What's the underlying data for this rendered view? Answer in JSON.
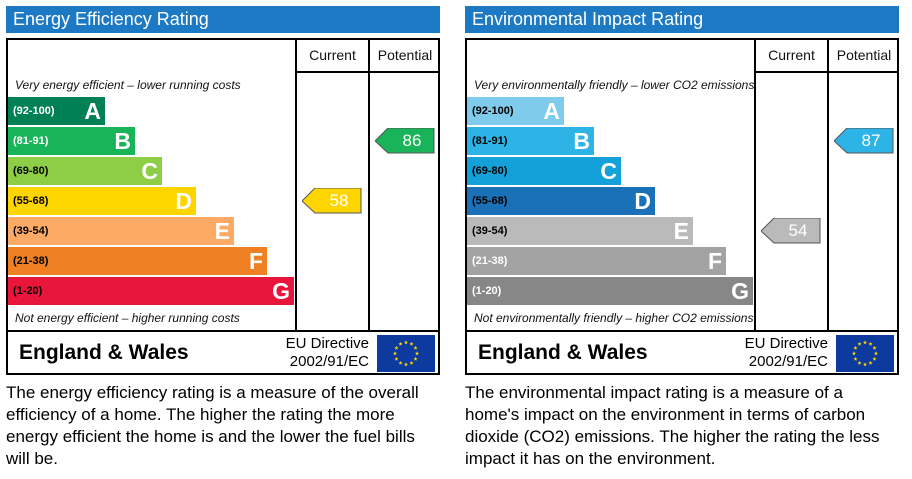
{
  "panels": {
    "energy": {
      "title": "Energy Efficiency Rating",
      "col_current": "Current",
      "col_potential": "Potential",
      "note_top": "Very energy efficient – lower running costs",
      "note_bottom": "Not energy efficient – higher running costs",
      "region": "England & Wales",
      "directive_line1": "EU Directive",
      "directive_line2": "2002/91/EC",
      "description": "The energy efficiency rating is a measure of the overall efficiency of a home.  The higher the rating the more energy efficient the home is and the lower the fuel bills will be."
    },
    "environment": {
      "title": "Environmental Impact Rating",
      "col_current": "Current",
      "col_potential": "Potential",
      "note_top": "Very environmentally friendly – lower CO2 emissions",
      "note_bottom": "Not environmentally friendly – higher CO2 emissions",
      "region": "England & Wales",
      "directive_line1": "EU Directive",
      "directive_line2": "2002/91/EC",
      "description": "The environmental impact rating is a measure of a home's impact on the environment in terms of carbon dioxide (CO2) emissions.  The higher the rating the less impact it has on the environment."
    }
  },
  "chart_data": [
    {
      "type": "bar",
      "title": "Energy Efficiency Rating",
      "categories": [
        "A",
        "B",
        "C",
        "D",
        "E",
        "F",
        "G"
      ],
      "ranges": [
        "(92-100)",
        "(81-91)",
        "(69-80)",
        "(55-68)",
        "(39-54)",
        "(21-38)",
        "(1-20)"
      ],
      "colors": [
        "#008054",
        "#19b459",
        "#8dce46",
        "#ffd500",
        "#fcaa65",
        "#ef8023",
        "#e9153b"
      ],
      "letter_colors": [
        "#ffffff",
        "#ffffff",
        "#ffffff",
        "#ffffff",
        "#ffffff",
        "#ffffff",
        "#ffffff"
      ],
      "range_colors": [
        "#ffffff",
        "#ffffff",
        "#000000",
        "#000000",
        "#000000",
        "#000000",
        "#000000"
      ],
      "current": 58,
      "potential": 86,
      "current_color": "#ffd500",
      "potential_color": "#19b459",
      "current_text_color": "#ffffff",
      "potential_text_color": "#ffffff"
    },
    {
      "type": "bar",
      "title": "Environmental Impact Rating",
      "categories": [
        "A",
        "B",
        "C",
        "D",
        "E",
        "F",
        "G"
      ],
      "ranges": [
        "(92-100)",
        "(81-91)",
        "(69-80)",
        "(55-68)",
        "(39-54)",
        "(21-38)",
        "(1-20)"
      ],
      "colors": [
        "#7fcbec",
        "#2db3e6",
        "#14a0d8",
        "#1a71b8",
        "#bababa",
        "#a3a3a3",
        "#878787"
      ],
      "letter_colors": [
        "#ffffff",
        "#ffffff",
        "#ffffff",
        "#ffffff",
        "#ffffff",
        "#ffffff",
        "#ffffff"
      ],
      "range_colors": [
        "#000000",
        "#000000",
        "#000000",
        "#000000",
        "#000000",
        "#ffffff",
        "#ffffff"
      ],
      "current": 54,
      "potential": 87,
      "current_color": "#bababa",
      "potential_color": "#2db3e6",
      "current_text_color": "#ffffff",
      "potential_text_color": "#ffffff"
    }
  ]
}
